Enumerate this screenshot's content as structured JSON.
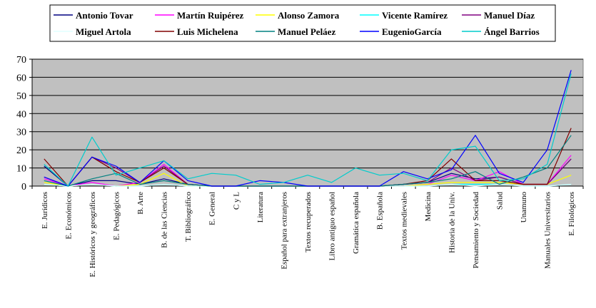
{
  "chart_data": {
    "type": "line",
    "title": "",
    "xlabel": "",
    "ylabel": "",
    "ylim": [
      0,
      70
    ],
    "yticks": [
      0,
      10,
      20,
      30,
      40,
      50,
      60,
      70
    ],
    "grid": true,
    "plot_background": "#c0c0c0",
    "legend_position": "top",
    "categories": [
      "E. Jurídicos",
      "E. Económicos",
      "E. Históricos y geográficos",
      "E. Pedagógicos",
      "B. Arte",
      "B. de las Ciencias",
      "T. Bibliográfico",
      "E. General",
      "C y L",
      "Literatura",
      "Español para extranjeros",
      "Textos recuperados",
      "Libro antiguo español",
      "Gramática española",
      "B. Española",
      "Textos medievales",
      "Medicina",
      "Historia de la Univ.",
      "Pensamiento y Sociedad",
      "Salud",
      "Unamuno",
      "Manuales Universitarios",
      "E. Filológicos"
    ],
    "series": [
      {
        "name": "Antonio Tovar",
        "color": "#000080",
        "values": [
          11,
          0,
          3,
          3,
          1,
          4,
          1,
          0,
          0,
          0,
          0,
          0,
          0,
          0,
          0,
          1,
          2,
          7,
          4,
          5,
          1,
          1,
          15
        ]
      },
      {
        "name": "Martín Ruipérez",
        "color": "#ff00ff",
        "values": [
          4,
          0,
          2,
          0,
          2,
          12,
          1,
          0,
          0,
          0,
          0,
          0,
          0,
          0,
          0,
          0,
          1,
          6,
          3,
          8,
          1,
          1,
          17
        ]
      },
      {
        "name": "Alonso Zamora",
        "color": "#ffff00",
        "values": [
          2,
          0,
          1,
          0,
          1,
          7,
          0,
          0,
          0,
          0,
          0,
          0,
          0,
          0,
          0,
          0,
          1,
          2,
          2,
          2,
          1,
          1,
          6
        ]
      },
      {
        "name": "Vicente Ramírez",
        "color": "#00ffff",
        "values": [
          1,
          0,
          1,
          0,
          0,
          1,
          0,
          0,
          0,
          0,
          0,
          0,
          0,
          0,
          0,
          0,
          0,
          1,
          1,
          1,
          0,
          0,
          1
        ]
      },
      {
        "name": "Manuel Díaz",
        "color": "#800080",
        "values": [
          5,
          0,
          16,
          10,
          2,
          11,
          1,
          0,
          0,
          0,
          0,
          0,
          0,
          0,
          0,
          1,
          2,
          10,
          3,
          5,
          1,
          1,
          15
        ]
      },
      {
        "name": "Miguel Artola",
        "color": "#e0ffff",
        "values": [
          1,
          0,
          1,
          0,
          0,
          1,
          0,
          0,
          0,
          0,
          0,
          0,
          0,
          0,
          0,
          0,
          0,
          1,
          0,
          1,
          0,
          0,
          1
        ]
      },
      {
        "name": "Luis Michelena",
        "color": "#800000",
        "values": [
          15,
          0,
          16,
          8,
          2,
          10,
          1,
          0,
          0,
          0,
          0,
          0,
          0,
          0,
          0,
          1,
          3,
          15,
          3,
          3,
          1,
          1,
          32
        ]
      },
      {
        "name": "Manuel Peláez",
        "color": "#008080",
        "values": [
          3,
          0,
          4,
          7,
          1,
          3,
          1,
          0,
          0,
          0,
          0,
          0,
          0,
          0,
          0,
          1,
          2,
          4,
          8,
          1,
          5,
          10,
          28
        ]
      },
      {
        "name": "EugenioGarcía",
        "color": "#0000ff",
        "values": [
          5,
          0,
          16,
          11,
          2,
          14,
          3,
          0,
          0,
          3,
          2,
          0,
          0,
          0,
          0,
          8,
          4,
          9,
          28,
          7,
          2,
          20,
          64
        ]
      },
      {
        "name": "Ángel Barrios",
        "color": "#00cccc",
        "values": [
          12,
          0,
          27,
          6,
          10,
          14,
          4,
          7,
          6,
          1,
          2,
          6,
          2,
          10,
          6,
          7,
          3,
          20,
          22,
          3,
          4,
          12,
          62
        ]
      }
    ]
  }
}
